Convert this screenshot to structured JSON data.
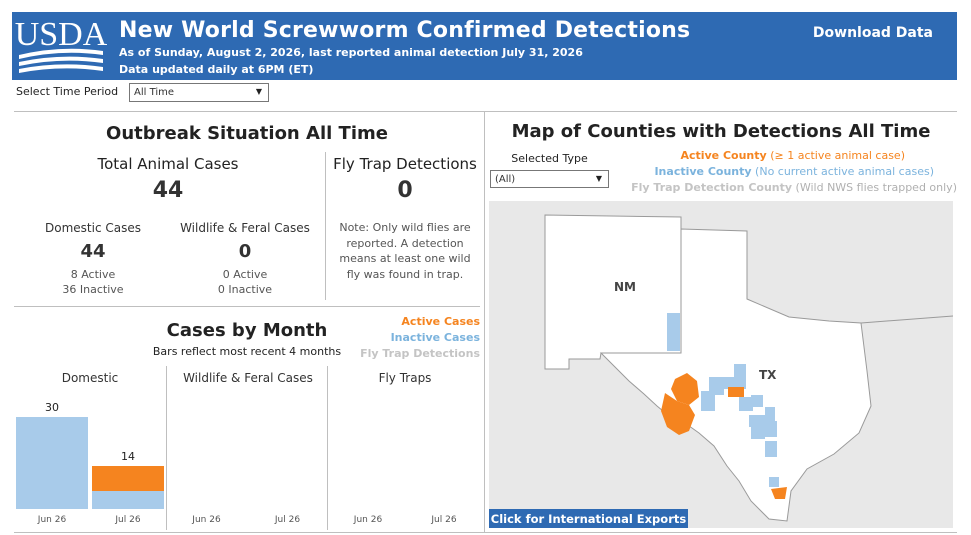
{
  "header": {
    "logo_text": "USDA",
    "title": "New World Screwworm Confirmed Detections",
    "subtitle_line1": "As of Sunday, August 2, 2026, last reported animal detection July 31, 2026",
    "subtitle_line2": "Data updated daily at 6PM (ET)",
    "download_label": "Download Data"
  },
  "time_period": {
    "label": "Select Time Period",
    "value": "All Time"
  },
  "outbreak": {
    "title": "Outbreak Situation All Time",
    "total_label": "Total Animal Cases",
    "total_value": "44",
    "domestic_label": "Domestic Cases",
    "domestic_value": "44",
    "domestic_active": "8 Active",
    "domestic_inactive": "36 Inactive",
    "wildlife_label": "Wildlife & Feral Cases",
    "wildlife_value": "0",
    "wildlife_active": "0 Active",
    "wildlife_inactive": "0 Inactive",
    "flytrap_label": "Fly Trap Detections",
    "flytrap_value": "0",
    "note_lines": [
      "Note: Only wild flies are",
      "reported. A detection",
      "means at least one wild",
      "fly was found in trap."
    ]
  },
  "cases_by_month": {
    "title": "Cases by Month",
    "subtitle": "Bars reflect most recent 4 months",
    "legend_active": "Active Cases",
    "legend_inactive": "Inactive Cases",
    "legend_flytrap": "Fly Trap Detections",
    "panels": [
      "Domestic",
      "Wildlife & Feral Cases",
      "Fly Traps"
    ]
  },
  "chart_data": {
    "type": "bar",
    "categories": [
      "Jun 26",
      "Jul 26"
    ],
    "series": [
      {
        "name": "Active Cases",
        "color": "#f5841f",
        "values": {
          "Domestic": [
            0,
            8
          ],
          "Wildlife & Feral Cases": [
            0,
            0
          ],
          "Fly Traps": [
            0,
            0
          ]
        }
      },
      {
        "name": "Inactive Cases",
        "color": "#a8cbea",
        "values": {
          "Domestic": [
            30,
            6
          ],
          "Wildlife & Feral Cases": [
            0,
            0
          ],
          "Fly Traps": [
            0,
            0
          ]
        }
      }
    ],
    "totals": {
      "Domestic": [
        30,
        14
      ]
    },
    "ylim": [
      0,
      30
    ]
  },
  "map": {
    "title": "Map of Counties with Detections All Time",
    "selected_type_label": "Selected Type",
    "selected_type_value": "(All)",
    "legend_active_bold": "Active County",
    "legend_active_rest": " (≥ 1 active animal case)",
    "legend_inactive_bold": "Inactive County",
    "legend_inactive_rest": " (No current active animal cases)",
    "legend_flytrap_bold": "Fly Trap Detection County",
    "legend_flytrap_rest": " (Wild NWS flies trapped only)",
    "state_nm": "NM",
    "state_tx": "TX",
    "colors": {
      "active": "#f5841f",
      "inactive": "#a8cbea",
      "land": "#ffffff",
      "water": "#e8e8e8"
    },
    "export_button": "Click for International Exports"
  }
}
